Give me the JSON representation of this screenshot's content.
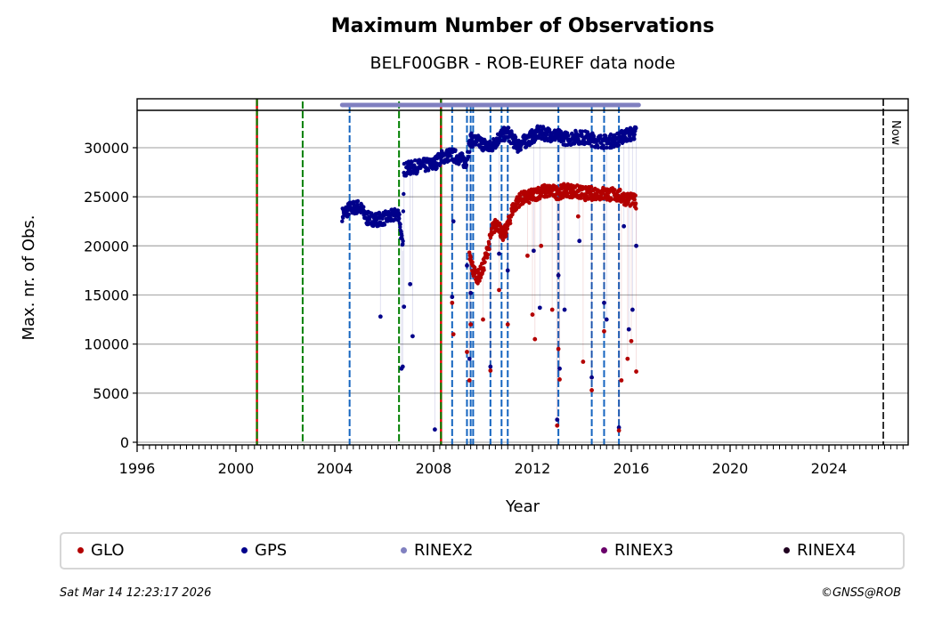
{
  "chart_data": {
    "type": "scatter",
    "title": "Maximum Number of Observations",
    "subtitle": "BELF00GBR - ROB-EUREF data node",
    "xlabel": "Year",
    "ylabel": "Max. nr. of Obs.",
    "xlim": [
      1996,
      2027.2
    ],
    "ylim": [
      -300,
      33800
    ],
    "x_ticks": [
      "1996",
      "2000",
      "2004",
      "2008",
      "2012",
      "2016",
      "2020",
      "2024"
    ],
    "x_tick_values": [
      1996,
      2000,
      2004,
      2008,
      2012,
      2016,
      2020,
      2024
    ],
    "y_ticks": [
      "0",
      "5000",
      "10000",
      "15000",
      "20000",
      "25000",
      "30000"
    ],
    "y_tick_values": [
      0,
      5000,
      10000,
      15000,
      20000,
      25000,
      30000
    ],
    "grid": "horizontal",
    "legend_placement": "bottom",
    "colors": {
      "GLO": "#b30000",
      "GPS": "#00008b",
      "RINEX2": "#8080c0",
      "RINEX3": "#6a006a",
      "RINEX4": "#200020",
      "event_blue": "#1565c0",
      "event_green": "#008000",
      "event_red": "#dd0000",
      "now": "#000000",
      "grid": "#b0b0b0"
    },
    "rinex2_span": [
      2004.3,
      2016.3
    ],
    "now_line": {
      "year": 2026.2,
      "label": "Now"
    },
    "event_lines": [
      {
        "year": 2000.85,
        "style": "red-green"
      },
      {
        "year": 2002.7,
        "style": "green"
      },
      {
        "year": 2004.6,
        "style": "blue"
      },
      {
        "year": 2006.6,
        "style": "green"
      },
      {
        "year": 2008.3,
        "style": "red-green"
      },
      {
        "year": 2008.75,
        "style": "blue"
      },
      {
        "year": 2009.35,
        "style": "blue"
      },
      {
        "year": 2009.5,
        "style": "blue"
      },
      {
        "year": 2009.6,
        "style": "blue"
      },
      {
        "year": 2010.3,
        "style": "blue"
      },
      {
        "year": 2010.75,
        "style": "blue"
      },
      {
        "year": 2011.0,
        "style": "blue"
      },
      {
        "year": 2013.05,
        "style": "blue"
      },
      {
        "year": 2014.4,
        "style": "blue"
      },
      {
        "year": 2014.9,
        "style": "blue"
      },
      {
        "year": 2015.5,
        "style": "blue"
      }
    ],
    "series": [
      {
        "name": "GPS",
        "trend": [
          [
            2004.3,
            23200
          ],
          [
            2004.6,
            23800
          ],
          [
            2005.0,
            24000
          ],
          [
            2005.3,
            22800
          ],
          [
            2005.7,
            22700
          ],
          [
            2006.0,
            22800
          ],
          [
            2006.3,
            23000
          ],
          [
            2006.6,
            23300
          ],
          [
            2006.75,
            19500
          ],
          [
            2006.8,
            27800
          ],
          [
            2007.2,
            28000
          ],
          [
            2007.6,
            28200
          ],
          [
            2008.0,
            28300
          ],
          [
            2008.3,
            29000
          ],
          [
            2008.7,
            29300
          ],
          [
            2009.0,
            29000
          ],
          [
            2009.3,
            28500
          ],
          [
            2009.5,
            30800
          ],
          [
            2009.9,
            30500
          ],
          [
            2010.3,
            30000
          ],
          [
            2010.7,
            31200
          ],
          [
            2011.0,
            31500
          ],
          [
            2011.4,
            30200
          ],
          [
            2011.8,
            30800
          ],
          [
            2012.2,
            31500
          ],
          [
            2012.6,
            31400
          ],
          [
            2013.0,
            31200
          ],
          [
            2013.4,
            30900
          ],
          [
            2013.8,
            31100
          ],
          [
            2014.2,
            31000
          ],
          [
            2014.6,
            30700
          ],
          [
            2015.0,
            30600
          ],
          [
            2015.4,
            30800
          ],
          [
            2015.8,
            31300
          ],
          [
            2016.2,
            31500
          ]
        ],
        "outliers": [
          [
            2005.85,
            12800
          ],
          [
            2006.7,
            7500
          ],
          [
            2006.75,
            7700
          ],
          [
            2006.8,
            13800
          ],
          [
            2007.05,
            16100
          ],
          [
            2007.15,
            10800
          ],
          [
            2008.05,
            1300
          ],
          [
            2008.75,
            14800
          ],
          [
            2008.8,
            22500
          ],
          [
            2009.35,
            18000
          ],
          [
            2009.45,
            8500
          ],
          [
            2009.5,
            15200
          ],
          [
            2010.3,
            7700
          ],
          [
            2010.65,
            19200
          ],
          [
            2011.0,
            17500
          ],
          [
            2012.05,
            19500
          ],
          [
            2012.3,
            13700
          ],
          [
            2013.0,
            2300
          ],
          [
            2013.05,
            17000
          ],
          [
            2013.1,
            7500
          ],
          [
            2013.3,
            13500
          ],
          [
            2013.9,
            20500
          ],
          [
            2014.4,
            6600
          ],
          [
            2014.9,
            14200
          ],
          [
            2015.0,
            12500
          ],
          [
            2015.5,
            1500
          ],
          [
            2015.7,
            22000
          ],
          [
            2015.9,
            11500
          ],
          [
            2016.05,
            13500
          ],
          [
            2016.2,
            20000
          ]
        ]
      },
      {
        "name": "GLO",
        "trend": [
          [
            2009.45,
            19000
          ],
          [
            2009.6,
            17500
          ],
          [
            2009.8,
            16800
          ],
          [
            2010.0,
            17800
          ],
          [
            2010.2,
            19800
          ],
          [
            2010.4,
            21800
          ],
          [
            2010.6,
            22300
          ],
          [
            2010.8,
            21000
          ],
          [
            2011.0,
            22000
          ],
          [
            2011.2,
            23800
          ],
          [
            2011.5,
            24800
          ],
          [
            2011.9,
            25000
          ],
          [
            2012.3,
            25500
          ],
          [
            2012.7,
            25600
          ],
          [
            2013.0,
            25400
          ],
          [
            2013.4,
            25700
          ],
          [
            2013.8,
            25500
          ],
          [
            2014.2,
            25300
          ],
          [
            2014.6,
            25400
          ],
          [
            2015.0,
            25300
          ],
          [
            2015.4,
            25200
          ],
          [
            2015.8,
            24800
          ],
          [
            2016.2,
            24500
          ]
        ],
        "outliers": [
          [
            2008.8,
            11000
          ],
          [
            2008.75,
            14200
          ],
          [
            2009.35,
            9200
          ],
          [
            2009.45,
            6300
          ],
          [
            2009.5,
            12000
          ],
          [
            2010.0,
            12500
          ],
          [
            2010.3,
            7300
          ],
          [
            2010.65,
            15500
          ],
          [
            2011.0,
            12000
          ],
          [
            2011.8,
            19000
          ],
          [
            2012.0,
            13000
          ],
          [
            2012.1,
            10500
          ],
          [
            2012.35,
            20000
          ],
          [
            2012.8,
            13500
          ],
          [
            2013.0,
            1700
          ],
          [
            2013.05,
            9500
          ],
          [
            2013.1,
            6400
          ],
          [
            2013.85,
            23000
          ],
          [
            2014.05,
            8200
          ],
          [
            2014.4,
            5300
          ],
          [
            2014.9,
            11300
          ],
          [
            2015.5,
            1200
          ],
          [
            2015.6,
            6300
          ],
          [
            2015.85,
            8500
          ],
          [
            2016.0,
            10300
          ],
          [
            2016.2,
            7200
          ]
        ]
      }
    ],
    "legend": [
      {
        "label": "GLO",
        "color_key": "GLO"
      },
      {
        "label": "GPS",
        "color_key": "GPS"
      },
      {
        "label": "RINEX2",
        "color_key": "RINEX2"
      },
      {
        "label": "RINEX3",
        "color_key": "RINEX3"
      },
      {
        "label": "RINEX4",
        "color_key": "RINEX4"
      }
    ]
  },
  "footer": {
    "timestamp": "Sat Mar 14 12:23:17 2026",
    "copyright": "©GNSS@ROB"
  }
}
